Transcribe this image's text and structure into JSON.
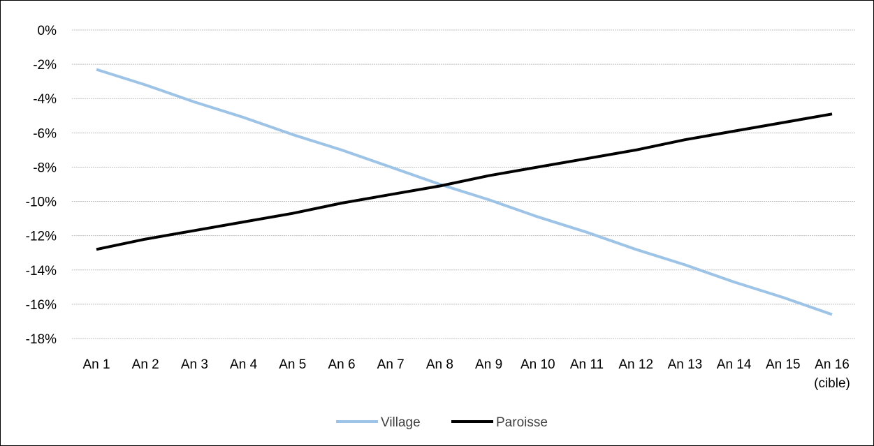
{
  "chart_data": {
    "type": "line",
    "title": "",
    "xlabel": "",
    "ylabel": "",
    "categories": [
      [
        "An 1"
      ],
      [
        "An 2"
      ],
      [
        "An 3"
      ],
      [
        "An 4"
      ],
      [
        "An 5"
      ],
      [
        "An 6"
      ],
      [
        "An 7"
      ],
      [
        "An 8"
      ],
      [
        "An 9"
      ],
      [
        "An 10"
      ],
      [
        "An 11"
      ],
      [
        "An 12"
      ],
      [
        "An 13"
      ],
      [
        "An 14"
      ],
      [
        "An 15"
      ],
      [
        "An 16",
        "(cible)"
      ]
    ],
    "yticks": [
      "0%",
      "-2%",
      "-4%",
      "-6%",
      "-8%",
      "-10%",
      "-12%",
      "-14%",
      "-16%",
      "-18%"
    ],
    "ytick_values": [
      0,
      -2,
      -4,
      -6,
      -8,
      -10,
      -12,
      -14,
      -16,
      -18
    ],
    "ylim": [
      -18,
      0
    ],
    "y_unit": "%",
    "grid": true,
    "legend_position": "bottom",
    "series": [
      {
        "name": "Village",
        "color": "#9DC3E6",
        "values": [
          -2.3,
          -3.2,
          -4.2,
          -5.1,
          -6.1,
          -7.0,
          -8.0,
          -9.0,
          -9.9,
          -10.9,
          -11.8,
          -12.8,
          -13.7,
          -14.7,
          -15.6,
          -16.6
        ]
      },
      {
        "name": "Paroisse",
        "color": "#000000",
        "values": [
          -12.8,
          -12.2,
          -11.7,
          -11.2,
          -10.7,
          -10.1,
          -9.6,
          -9.1,
          -8.5,
          -8.0,
          -7.5,
          -7.0,
          -6.4,
          -5.9,
          -5.4,
          -4.9
        ]
      }
    ]
  }
}
